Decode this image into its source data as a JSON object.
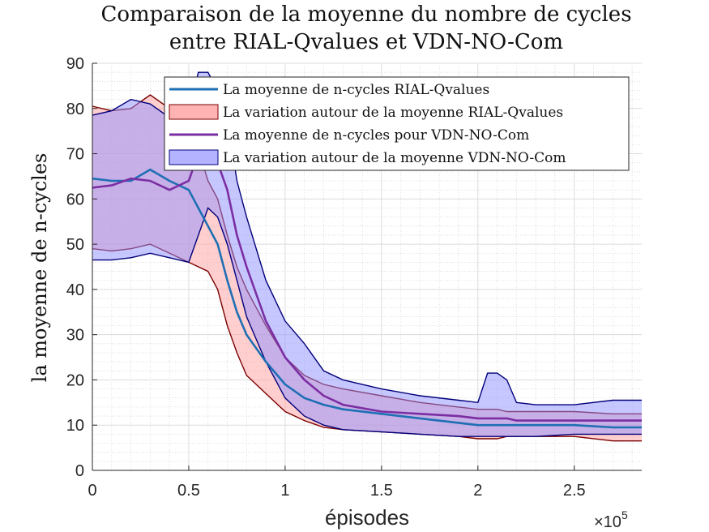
{
  "chart_data": {
    "type": "area",
    "title_lines": [
      "Comparaison de la moyenne du nombre de cycles",
      "entre RIAL-Qvalues et VDN-NO-Com"
    ],
    "xlabel": "épisodes",
    "ylabel": "la moyenne de n-cycles",
    "x_exponent": {
      "base": "×10",
      "power": "5"
    },
    "xlim": [
      0,
      2.85
    ],
    "ylim": [
      0,
      90
    ],
    "xticks": [
      0,
      0.5,
      1,
      1.5,
      2,
      2.5
    ],
    "xtick_labels": [
      "0",
      "0.5",
      "1",
      "1.5",
      "2",
      "2.5"
    ],
    "yticks": [
      0,
      10,
      20,
      30,
      40,
      50,
      60,
      70,
      80,
      90
    ],
    "ytick_labels": [
      "0",
      "10",
      "20",
      "30",
      "40",
      "50",
      "60",
      "70",
      "80",
      "90"
    ],
    "grid": true,
    "minor_grid": true,
    "legend_position": "top-right",
    "legend": [
      {
        "label": "La moyenne de n-cycles RIAL-Qvalues",
        "kind": "line",
        "color": "#1f6fb4"
      },
      {
        "label": "La variation autour de la moyenne RIAL-Qvalues",
        "kind": "patch",
        "fill": "#ffb3b3",
        "edge": "#7a0000"
      },
      {
        "label": "La moyenne de n-cycles pour VDN-NO-Com",
        "kind": "line",
        "color": "#7b2ea3"
      },
      {
        "label": "La variation autour de la moyenne VDN-NO-Com",
        "kind": "patch",
        "fill": "#b3b3ff",
        "edge": "#00007a"
      }
    ],
    "x": [
      0,
      0.1,
      0.2,
      0.3,
      0.4,
      0.5,
      0.55,
      0.6,
      0.65,
      0.7,
      0.75,
      0.8,
      0.9,
      1.0,
      1.1,
      1.2,
      1.3,
      1.5,
      1.7,
      1.9,
      2.0,
      2.05,
      2.1,
      2.15,
      2.2,
      2.3,
      2.5,
      2.7,
      2.85
    ],
    "series": [
      {
        "name": "La moyenne de n-cycles RIAL-Qvalues",
        "color": "#1f6fb4",
        "mean": [
          64.5,
          64,
          64,
          66.5,
          64,
          62,
          58,
          54,
          50,
          42,
          35,
          30,
          24,
          19,
          16,
          14.5,
          13.5,
          12.5,
          11.5,
          10.5,
          10,
          10,
          10,
          10,
          10,
          10,
          10,
          9.5,
          9.5
        ],
        "lower": [
          49,
          48.5,
          49,
          50,
          48,
          46,
          45,
          44,
          40,
          32,
          26,
          21,
          17,
          13,
          11,
          9.5,
          9,
          8.5,
          8,
          7.5,
          7,
          7,
          7,
          7.5,
          7.5,
          7.5,
          7.5,
          6.5,
          6.5
        ],
        "upper": [
          80.5,
          79.5,
          80,
          83,
          80,
          78,
          71,
          64,
          60,
          52,
          45,
          40,
          32,
          25,
          21,
          19,
          18,
          16.5,
          15,
          14,
          13.5,
          13.5,
          13.5,
          13,
          13,
          13,
          13,
          12.5,
          12.5
        ]
      },
      {
        "name": "La moyenne de n-cycles pour VDN-NO-Com",
        "color": "#7b2ea3",
        "mean": [
          62.5,
          63,
          64.5,
          64,
          62,
          64,
          70,
          71,
          68,
          62,
          52,
          45,
          33,
          25,
          20,
          16.5,
          14.5,
          13,
          12.5,
          12,
          11.5,
          11.5,
          11.5,
          11.5,
          11,
          11,
          11,
          11,
          11
        ],
        "lower": [
          46.5,
          46.5,
          47,
          48,
          47,
          46,
          52,
          58,
          56,
          50,
          42,
          34,
          24,
          16,
          12,
          10,
          9,
          8.5,
          8,
          7.5,
          7.5,
          7.5,
          7.5,
          7.5,
          7.5,
          7.5,
          8,
          8,
          8
        ],
        "upper": [
          78.5,
          79.5,
          82,
          81,
          78,
          80,
          88,
          88,
          84,
          78,
          64,
          56,
          42,
          33,
          28,
          22,
          20,
          18,
          16.5,
          15.5,
          15,
          21.5,
          21.5,
          20,
          15,
          14.5,
          14.5,
          15.5,
          15.5
        ]
      }
    ]
  }
}
